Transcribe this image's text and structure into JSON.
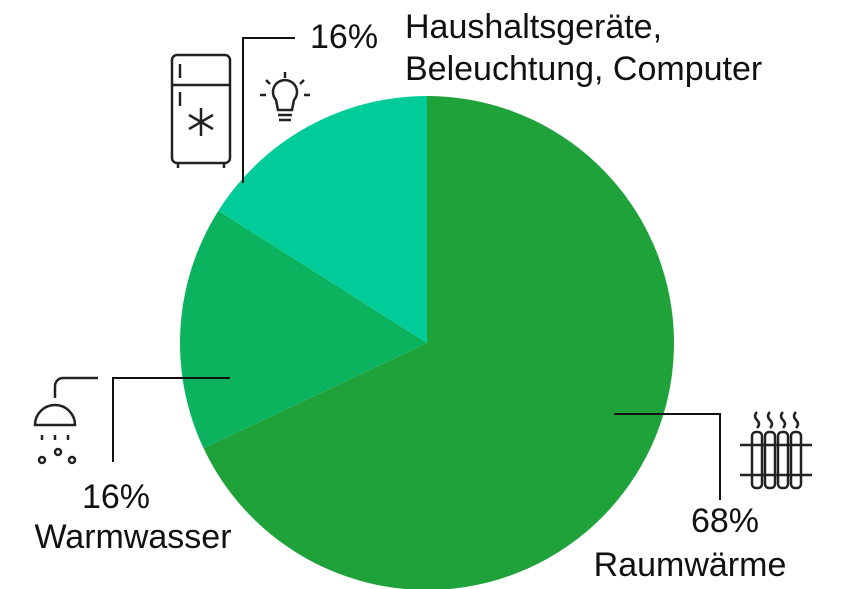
{
  "chart_data": {
    "type": "pie",
    "categories": [
      "Raumwärme",
      "Warmwasser",
      "Haushaltsgeräte, Beleuchtung, Computer"
    ],
    "values": [
      68,
      16,
      16
    ],
    "value_labels": [
      "68%",
      "16%",
      "16%"
    ],
    "colors": [
      "#1fa23a",
      "#0cb35f",
      "#00cc99"
    ]
  }
}
